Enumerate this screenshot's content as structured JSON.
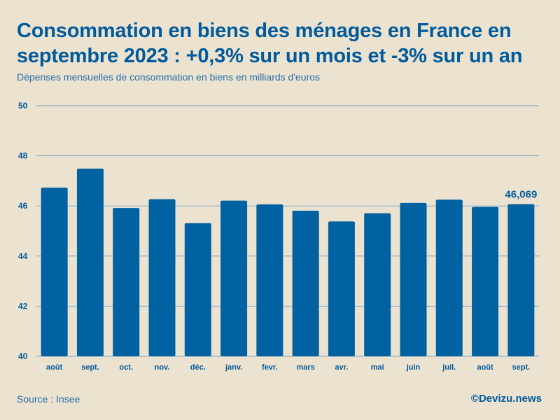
{
  "header": {
    "title": "Consommation en biens des ménages en France en septembre 2023 : +0,3% sur un mois et -3% sur un an",
    "subtitle": "Dépenses mensuelles de consommation en biens en milliards d'euros"
  },
  "footer": {
    "source": "Source : Insee",
    "credit": "©Devizu.news"
  },
  "colors": {
    "bar": "#0062a1",
    "grid": "#7ea7c7",
    "text": "#005a9c"
  },
  "chart_data": {
    "type": "bar",
    "categories": [
      "août",
      "sept.",
      "oct.",
      "nov.",
      "déc.",
      "janv.",
      "fevr.",
      "mars",
      "avr.",
      "mai",
      "juin",
      "juil.",
      "août",
      "sept."
    ],
    "values": [
      46.73,
      47.49,
      45.92,
      46.27,
      45.31,
      46.21,
      46.06,
      45.81,
      45.38,
      45.71,
      46.12,
      46.25,
      45.96,
      46.069
    ],
    "data_labels": [
      {
        "index": 13,
        "text": "46,069"
      }
    ],
    "ylim": [
      40,
      50
    ],
    "yticks": [
      40,
      42,
      44,
      46,
      48,
      50
    ],
    "title": "Consommation en biens des ménages en France en septembre 2023 : +0,3% sur un mois et -3% sur un an",
    "xlabel": "",
    "ylabel": "Dépenses mensuelles de consommation en biens en milliards d'euros",
    "grid": true
  }
}
